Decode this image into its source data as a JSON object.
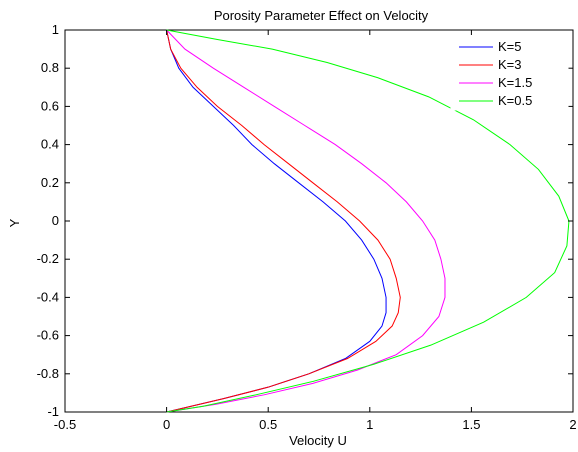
{
  "chart_data": {
    "type": "line",
    "title": "Porosity Parameter Effect on Velocity",
    "xlabel": "Velocity U",
    "ylabel": "Y",
    "xlim": [
      -0.5,
      2
    ],
    "ylim": [
      -1,
      1
    ],
    "xticks": [
      "-0.5",
      "0",
      "0.5",
      "1",
      "1.5",
      "2"
    ],
    "yticks": [
      "-1",
      "-0.8",
      "-0.6",
      "-0.4",
      "-0.2",
      "0",
      "0.2",
      "0.4",
      "0.6",
      "0.8",
      "1"
    ],
    "grid": false,
    "legend_position": "top-right",
    "series": [
      {
        "name": "K=5",
        "color": "#0000ff",
        "points": [
          [
            0.0,
            1.0
          ],
          [
            0.02,
            0.9
          ],
          [
            0.06,
            0.8
          ],
          [
            0.13,
            0.7
          ],
          [
            0.23,
            0.6
          ],
          [
            0.33,
            0.5
          ],
          [
            0.42,
            0.4
          ],
          [
            0.53,
            0.3
          ],
          [
            0.65,
            0.2
          ],
          [
            0.77,
            0.1
          ],
          [
            0.88,
            0.0
          ],
          [
            0.96,
            -0.1
          ],
          [
            1.02,
            -0.2
          ],
          [
            1.06,
            -0.3
          ],
          [
            1.08,
            -0.4
          ],
          [
            1.08,
            -0.48
          ],
          [
            1.06,
            -0.55
          ],
          [
            1.0,
            -0.63
          ],
          [
            0.88,
            -0.72
          ],
          [
            0.7,
            -0.8
          ],
          [
            0.5,
            -0.87
          ],
          [
            0.28,
            -0.93
          ],
          [
            0.1,
            -0.975
          ],
          [
            0.0,
            -1.0
          ]
        ]
      },
      {
        "name": "K=3",
        "color": "#ff0000",
        "points": [
          [
            0.0,
            1.0
          ],
          [
            0.02,
            0.9
          ],
          [
            0.07,
            0.8
          ],
          [
            0.15,
            0.7
          ],
          [
            0.25,
            0.6
          ],
          [
            0.37,
            0.5
          ],
          [
            0.48,
            0.4
          ],
          [
            0.6,
            0.3
          ],
          [
            0.72,
            0.2
          ],
          [
            0.84,
            0.1
          ],
          [
            0.95,
            0.0
          ],
          [
            1.04,
            -0.1
          ],
          [
            1.1,
            -0.2
          ],
          [
            1.13,
            -0.3
          ],
          [
            1.15,
            -0.4
          ],
          [
            1.14,
            -0.48
          ],
          [
            1.11,
            -0.55
          ],
          [
            1.03,
            -0.63
          ],
          [
            0.89,
            -0.72
          ],
          [
            0.7,
            -0.8
          ],
          [
            0.5,
            -0.87
          ],
          [
            0.28,
            -0.93
          ],
          [
            0.1,
            -0.975
          ],
          [
            0.0,
            -1.0
          ]
        ]
      },
      {
        "name": "K=1.5",
        "color": "#ff00ff",
        "points": [
          [
            0.0,
            1.0
          ],
          [
            0.09,
            0.9
          ],
          [
            0.23,
            0.8
          ],
          [
            0.38,
            0.7
          ],
          [
            0.53,
            0.6
          ],
          [
            0.68,
            0.5
          ],
          [
            0.83,
            0.4
          ],
          [
            0.96,
            0.3
          ],
          [
            1.08,
            0.2
          ],
          [
            1.18,
            0.1
          ],
          [
            1.26,
            0.0
          ],
          [
            1.32,
            -0.1
          ],
          [
            1.35,
            -0.2
          ],
          [
            1.37,
            -0.3
          ],
          [
            1.37,
            -0.4
          ],
          [
            1.34,
            -0.5
          ],
          [
            1.26,
            -0.6
          ],
          [
            1.13,
            -0.7
          ],
          [
            0.94,
            -0.78
          ],
          [
            0.72,
            -0.85
          ],
          [
            0.48,
            -0.91
          ],
          [
            0.24,
            -0.96
          ],
          [
            0.0,
            -1.0
          ]
        ]
      },
      {
        "name": "K=0.5",
        "color": "#00ff00",
        "points": [
          [
            0.0,
            1.0
          ],
          [
            0.25,
            0.95
          ],
          [
            0.52,
            0.9
          ],
          [
            0.79,
            0.83
          ],
          [
            1.04,
            0.75
          ],
          [
            1.29,
            0.65
          ],
          [
            1.51,
            0.53
          ],
          [
            1.69,
            0.4
          ],
          [
            1.83,
            0.27
          ],
          [
            1.93,
            0.13
          ],
          [
            1.98,
            0.0
          ],
          [
            1.97,
            -0.13
          ],
          [
            1.91,
            -0.27
          ],
          [
            1.77,
            -0.4
          ],
          [
            1.56,
            -0.53
          ],
          [
            1.3,
            -0.65
          ],
          [
            1.02,
            -0.75
          ],
          [
            0.72,
            -0.84
          ],
          [
            0.44,
            -0.91
          ],
          [
            0.18,
            -0.97
          ],
          [
            0.0,
            -1.0
          ]
        ]
      }
    ]
  }
}
